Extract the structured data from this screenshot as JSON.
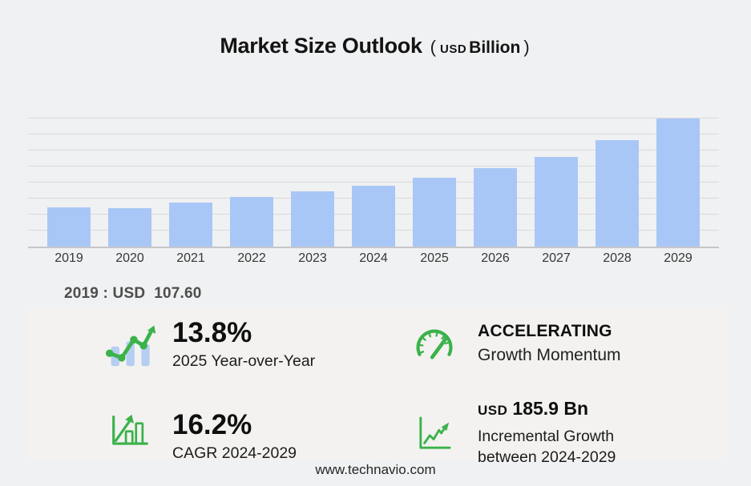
{
  "title": {
    "main": "Market Size Outlook",
    "open_paren": "(",
    "currency": "USD",
    "unit": "Billion",
    "close_paren": ")"
  },
  "chart_data": {
    "type": "bar",
    "title": "Market Size Outlook (USD Billion)",
    "categories": [
      "2019",
      "2020",
      "2021",
      "2022",
      "2023",
      "2024",
      "2025",
      "2026",
      "2027",
      "2028",
      "2029"
    ],
    "values": [
      107.6,
      106.0,
      121.0,
      136.0,
      152.0,
      166.9,
      189.9,
      216.0,
      248.0,
      294.0,
      352.8
    ],
    "ylabel": "USD Billion",
    "xlabel": "",
    "ylim": [
      0,
      352.8
    ],
    "gridline_count": 8,
    "grid": true,
    "legend": false,
    "bar_color": "#a9c7f6",
    "annotation": "2019 : USD  107.60"
  },
  "annotation": {
    "text": "2019 : USD  107.60"
  },
  "stats": {
    "yoy": {
      "icon": "trend-bars-icon",
      "value": "13.8%",
      "label": "2025 Year-over-Year"
    },
    "momentum": {
      "icon": "speedometer-icon",
      "value": "ACCELERATING",
      "label": "Growth Momentum"
    },
    "cagr": {
      "icon": "bar-growth-icon",
      "value": "16.2%",
      "label": "CAGR 2024-2029"
    },
    "incremental": {
      "icon": "line-growth-icon",
      "currency": "USD",
      "value": "185.9 Bn",
      "label_line1": "Incremental Growth",
      "label_line2": "between 2024-2029"
    }
  },
  "footer": {
    "website": "www.technavio.com"
  },
  "colors": {
    "accent_green": "#3bb24a",
    "bar_blue": "#a9c7f6",
    "icon_bar_blue": "#b6cef2",
    "page_background": "#f0f1f2",
    "panel_background": "#f3f2f0",
    "gridline": "#d9d9db"
  }
}
